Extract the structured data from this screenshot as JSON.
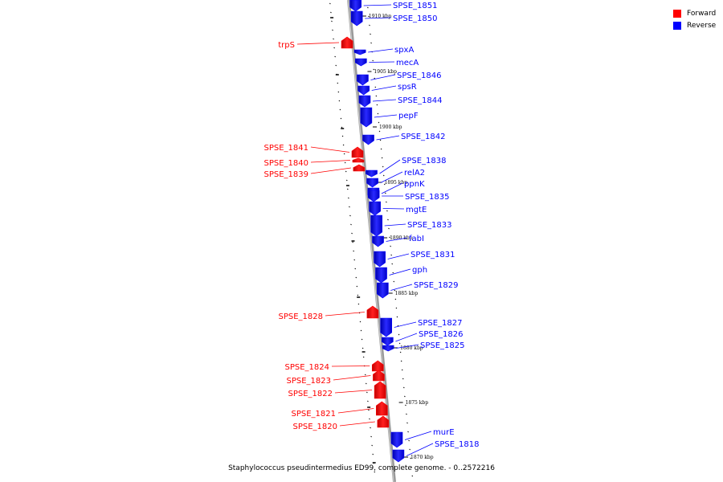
{
  "legend": {
    "forward_label": "Forward",
    "reverse_label": "Reverse",
    "forward_color": "#ff0000",
    "reverse_color": "#0000ff"
  },
  "caption": "Staphylococcus pseudintermedius ED99, complete genome. - 0..2572216",
  "kbp_labels": [
    "1910 kbp",
    "1905 kbp",
    "1900 kbp",
    "1895 kbp",
    "1890 kbp",
    "1885 kbp",
    "1880 kbp",
    "1875 kbp",
    "1870 kbp"
  ],
  "genes": [
    {
      "name": "SPSE_1851",
      "strand": "reverse"
    },
    {
      "name": "SPSE_1850",
      "strand": "reverse"
    },
    {
      "name": "trpS",
      "strand": "forward"
    },
    {
      "name": "spxA",
      "strand": "reverse"
    },
    {
      "name": "mecA",
      "strand": "reverse"
    },
    {
      "name": "SPSE_1846",
      "strand": "reverse"
    },
    {
      "name": "spsR",
      "strand": "reverse"
    },
    {
      "name": "SPSE_1844",
      "strand": "reverse"
    },
    {
      "name": "pepF",
      "strand": "reverse"
    },
    {
      "name": "SPSE_1842",
      "strand": "reverse"
    },
    {
      "name": "SPSE_1841",
      "strand": "forward"
    },
    {
      "name": "SPSE_1840",
      "strand": "forward"
    },
    {
      "name": "SPSE_1839",
      "strand": "forward"
    },
    {
      "name": "SPSE_1838",
      "strand": "reverse"
    },
    {
      "name": "relA2",
      "strand": "reverse"
    },
    {
      "name": "ppnK",
      "strand": "reverse"
    },
    {
      "name": "SPSE_1835",
      "strand": "reverse"
    },
    {
      "name": "mgtE",
      "strand": "reverse"
    },
    {
      "name": "SPSE_1833",
      "strand": "reverse"
    },
    {
      "name": "fabI",
      "strand": "reverse"
    },
    {
      "name": "SPSE_1831",
      "strand": "reverse"
    },
    {
      "name": "gph",
      "strand": "reverse"
    },
    {
      "name": "SPSE_1829",
      "strand": "reverse"
    },
    {
      "name": "SPSE_1828",
      "strand": "forward"
    },
    {
      "name": "SPSE_1827",
      "strand": "reverse"
    },
    {
      "name": "SPSE_1826",
      "strand": "reverse"
    },
    {
      "name": "SPSE_1825",
      "strand": "reverse"
    },
    {
      "name": "SPSE_1824",
      "strand": "forward"
    },
    {
      "name": "SPSE_1823",
      "strand": "forward"
    },
    {
      "name": "SPSE_1822",
      "strand": "forward"
    },
    {
      "name": "SPSE_1821",
      "strand": "forward"
    },
    {
      "name": "SPSE_1820",
      "strand": "forward"
    },
    {
      "name": "murE",
      "strand": "reverse"
    },
    {
      "name": "SPSE_1818",
      "strand": "reverse"
    }
  ]
}
